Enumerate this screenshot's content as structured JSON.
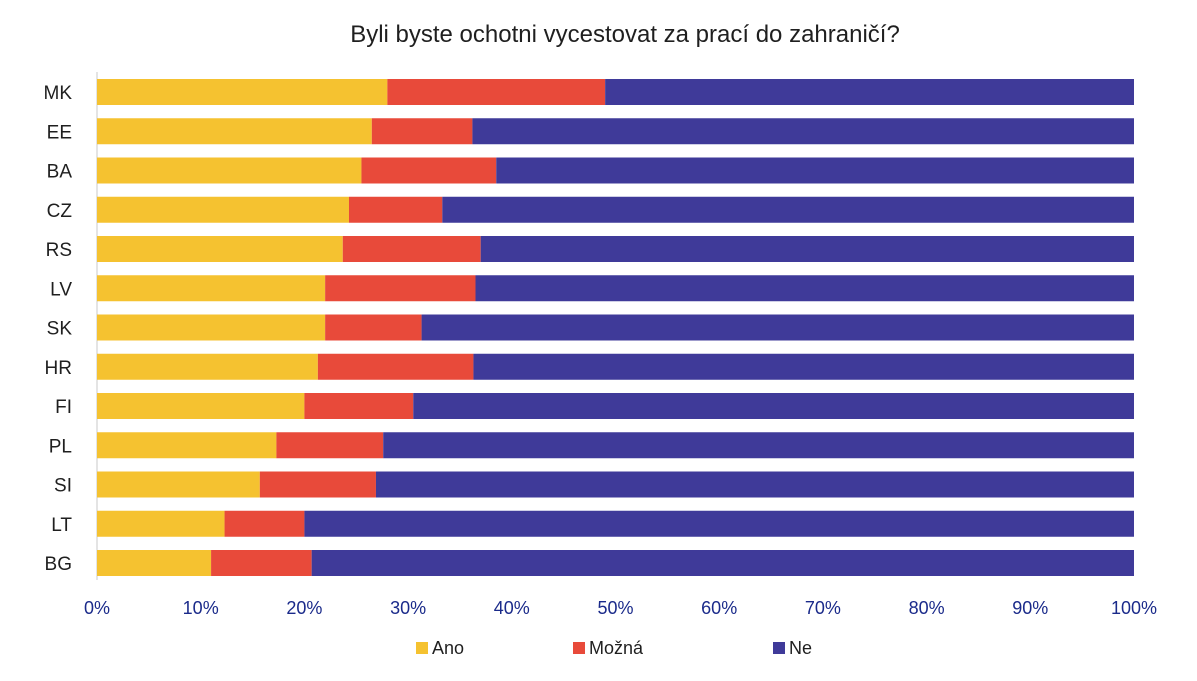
{
  "chart_data": {
    "type": "bar",
    "orientation": "horizontal",
    "stacked": true,
    "title": "Byli byste ochotni vycestovat za prací do zahraničí?",
    "xlabel": "",
    "ylabel": "",
    "xlim": [
      0,
      100
    ],
    "x_ticks": [
      "0%",
      "10%",
      "20%",
      "30%",
      "40%",
      "50%",
      "60%",
      "70%",
      "80%",
      "90%",
      "100%"
    ],
    "categories": [
      "MK",
      "EE",
      "BA",
      "CZ",
      "RS",
      "LV",
      "SK",
      "HR",
      "FI",
      "PL",
      "SI",
      "LT",
      "BG"
    ],
    "series": [
      {
        "name": "Ano",
        "color": "#F5C230",
        "values": [
          28,
          26.5,
          25.5,
          24.3,
          23.7,
          22,
          22,
          21.3,
          20,
          17.3,
          15.7,
          12.3,
          11
        ]
      },
      {
        "name": "Možná",
        "color": "#E84A3A",
        "values": [
          21,
          9.7,
          13,
          9,
          13.3,
          14.5,
          9.3,
          15,
          10.5,
          10.3,
          11.2,
          7.7,
          9.7
        ]
      },
      {
        "name": "Ne",
        "color": "#3F3A99",
        "values": [
          51,
          63.8,
          61.5,
          66.7,
          63,
          63.5,
          68.7,
          63.7,
          69.5,
          72.4,
          73.1,
          80,
          79.3
        ]
      }
    ],
    "grid": false,
    "legend_position": "bottom"
  }
}
